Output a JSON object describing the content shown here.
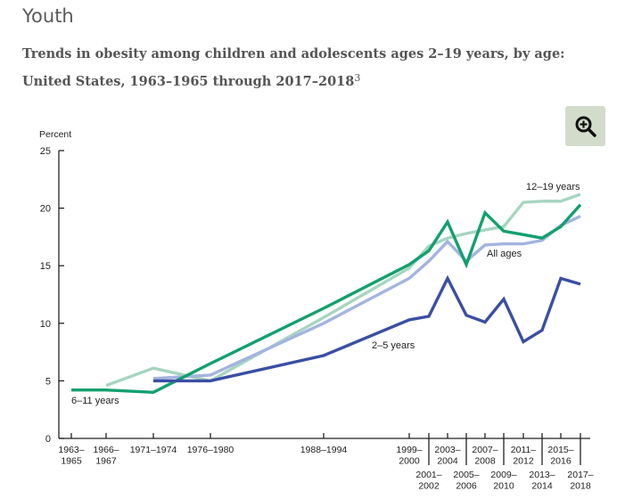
{
  "page": {
    "section_title": "Youth",
    "caption": "Trends in obesity among children and adolescents ages 2–19 years, by age: United States, 1963–1965 through 2017–2018",
    "caption_footnote": "3",
    "zoom_button_icon": "zoom-in-icon"
  },
  "chart_data": {
    "type": "line",
    "title": "Trends in obesity among children and adolescents ages 2–19 years, by age: United States, 1963–1965 through 2017–2018",
    "xlabel": "",
    "ylabel": "Percent",
    "ylim": [
      0,
      25
    ],
    "yticks": [
      0,
      5,
      10,
      15,
      20,
      25
    ],
    "grid": false,
    "categories": [
      "1963–1965",
      "1966–1967",
      "1971–1974",
      "1976–1980",
      "1988–1994",
      "1999–2000",
      "2001–2002",
      "2003–2004",
      "2005–2006",
      "2007–2008",
      "2009–2010",
      "2011–2012",
      "2013–2014",
      "2015–2016",
      "2017–2018"
    ],
    "category_label_lines": [
      [
        "1963–",
        "1965"
      ],
      [
        "1966–",
        "1967"
      ],
      [
        "1971–1974"
      ],
      [
        "1976–1980"
      ],
      [
        "1988–1994"
      ],
      [
        "1999–",
        "2000"
      ],
      [
        "2001–",
        "2002"
      ],
      [
        "2003–",
        "2004"
      ],
      [
        "2005–",
        "2006"
      ],
      [
        "2007–",
        "2008"
      ],
      [
        "2009–",
        "2010"
      ],
      [
        "2011–",
        "2012"
      ],
      [
        "2013–",
        "2014"
      ],
      [
        "2015–",
        "2016"
      ],
      [
        "2017–",
        "2018"
      ]
    ],
    "series": [
      {
        "name": "12–19 years",
        "color": "#a6d5c0",
        "values": [
          null,
          4.6,
          6.1,
          5.0,
          10.5,
          14.8,
          16.7,
          17.4,
          17.8,
          18.1,
          18.4,
          20.5,
          20.6,
          20.6,
          21.2
        ]
      },
      {
        "name": "All ages",
        "color": "#a3b4e0",
        "values": [
          null,
          null,
          5.2,
          5.5,
          10.0,
          13.9,
          15.4,
          17.1,
          15.4,
          16.8,
          16.9,
          16.9,
          17.2,
          18.5,
          19.3
        ]
      },
      {
        "name": "6–11 years",
        "color": "#12a06e",
        "values": [
          4.2,
          4.2,
          4.0,
          6.5,
          11.3,
          15.1,
          16.3,
          18.8,
          15.1,
          19.6,
          18.0,
          17.7,
          17.4,
          18.4,
          20.3
        ]
      },
      {
        "name": "2–5 years",
        "color": "#3a4fa3",
        "values": [
          null,
          null,
          5.0,
          5.0,
          7.2,
          10.3,
          10.6,
          13.9,
          10.7,
          10.1,
          12.1,
          8.4,
          9.4,
          13.9,
          13.4
        ]
      }
    ],
    "annotations": [
      {
        "text": "12–19 years",
        "series": "12–19 years"
      },
      {
        "text": "All ages",
        "series": "All ages"
      },
      {
        "text": "6–11 years",
        "series": "6–11 years"
      },
      {
        "text": "2–5 years",
        "series": "2–5 years"
      }
    ]
  }
}
